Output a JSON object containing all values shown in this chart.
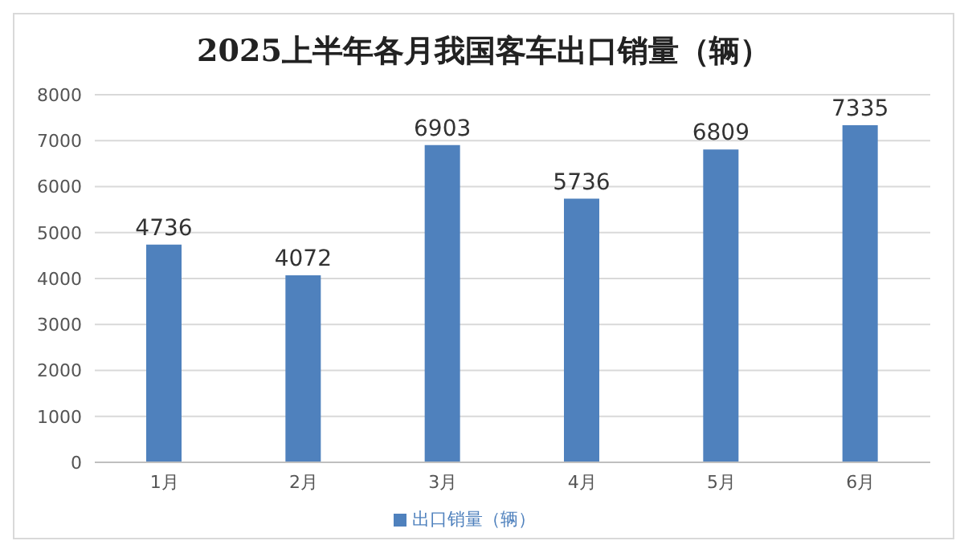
{
  "chart_data": {
    "type": "bar",
    "title": "2025上半年各月我国客车出口销量（辆）",
    "categories": [
      "1月",
      "2月",
      "3月",
      "4月",
      "5月",
      "6月"
    ],
    "series": [
      {
        "name": "出口销量（辆）",
        "color": "#4f81bd",
        "values": [
          4736,
          4072,
          6903,
          5736,
          6809,
          7335
        ]
      }
    ],
    "ylim": [
      0,
      8000
    ],
    "yticks": [
      0,
      1000,
      2000,
      3000,
      4000,
      5000,
      6000,
      7000,
      8000
    ],
    "grid": "y",
    "legend": "bottom",
    "data_labels": true
  }
}
